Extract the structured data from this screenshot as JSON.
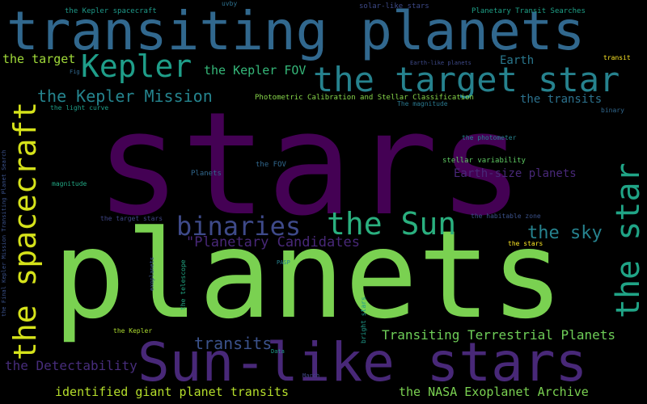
{
  "words": [
    {
      "text": "stars",
      "color": "#440154"
    },
    {
      "text": "planets",
      "color": "#7ad151"
    },
    {
      "text": "transiting planets",
      "color": "#31688e"
    },
    {
      "text": "Sun-like stars",
      "color": "#482878"
    },
    {
      "text": "the target star",
      "color": "#26828e"
    },
    {
      "text": "Kepler",
      "color": "#1f9e89"
    },
    {
      "text": "the star",
      "color": "#20a486"
    },
    {
      "text": "the spacecraft",
      "color": "#d5e21a"
    },
    {
      "text": "the Sun",
      "color": "#2ab07f"
    },
    {
      "text": "binaries",
      "color": "#3e4a89"
    },
    {
      "text": "the Kepler Mission",
      "color": "#25848e"
    },
    {
      "text": "the sky",
      "color": "#26828e"
    },
    {
      "text": "\"Planetary Candidates",
      "color": "#482878"
    },
    {
      "text": "Transiting Terrestrial Planets",
      "color": "#6ece58"
    },
    {
      "text": "transits",
      "color": "#3b528b"
    },
    {
      "text": "identified giant planet transits",
      "color": "#b5de2b"
    },
    {
      "text": "the NASA Exoplanet Archive",
      "color": "#7ad151"
    },
    {
      "text": "the Detectability",
      "color": "#472d7b"
    },
    {
      "text": "the Kepler FOV",
      "color": "#35b779"
    },
    {
      "text": "the target",
      "color": "#a0da39"
    },
    {
      "text": "Earth",
      "color": "#2a788e"
    },
    {
      "text": "the transits",
      "color": "#2c728e"
    },
    {
      "text": "Earth-size planets",
      "color": "#482878"
    },
    {
      "text": "Photometric Calibration and Stellar Classification",
      "color": "#86d549"
    },
    {
      "text": "the Kepler spacecraft",
      "color": "#1f9a8a"
    },
    {
      "text": "uvby",
      "color": "#2d708e"
    },
    {
      "text": "solar-like stars",
      "color": "#3e4a89"
    },
    {
      "text": "Planetary Transit Searches",
      "color": "#1fa188"
    },
    {
      "text": "Earth-like planets",
      "color": "#3e4a89"
    },
    {
      "text": "transit",
      "color": "#fde725"
    },
    {
      "text": "Fig",
      "color": "#31688e"
    },
    {
      "text": "the light curve",
      "color": "#1f9e89"
    },
    {
      "text": "The magnitude",
      "color": "#2a788e"
    },
    {
      "text": "binary",
      "color": "#31688e"
    },
    {
      "text": "the photometer",
      "color": "#26828e"
    },
    {
      "text": "stellar variability",
      "color": "#5ec962"
    },
    {
      "text": "the FOV",
      "color": "#31688e"
    },
    {
      "text": "Planets",
      "color": "#31688e"
    },
    {
      "text": "magnitude",
      "color": "#22a884"
    },
    {
      "text": "the target stars",
      "color": "#404688"
    },
    {
      "text": "the habitable zone",
      "color": "#3b528b"
    },
    {
      "text": "the stars",
      "color": "#fde725"
    },
    {
      "text": "the Final Kepler Mission Transiting Planet Search",
      "color": "#3b528b"
    },
    {
      "text": "exoplanets",
      "color": "#3b528b"
    },
    {
      "text": "the telescope",
      "color": "#22a884"
    },
    {
      "text": "PASP",
      "color": "#26828e"
    },
    {
      "text": "bright stars",
      "color": "#1f9a8a"
    },
    {
      "text": "the Kepler",
      "color": "#addc30"
    },
    {
      "text": "Data",
      "color": "#1f9a8a"
    },
    {
      "text": "March",
      "color": "#404688"
    }
  ]
}
